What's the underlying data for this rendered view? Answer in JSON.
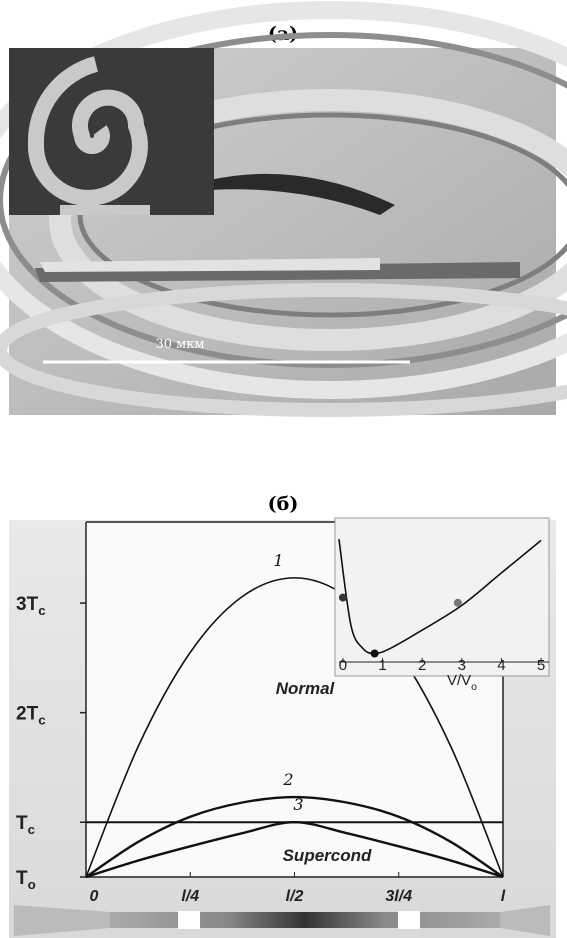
{
  "figure_a": {
    "label": "(a)",
    "scale_bar_label": "30 мкм"
  },
  "figure_b_label": "(б)",
  "chart_data": [
    {
      "type": "line",
      "x": [
        0,
        0.125,
        0.25,
        0.375,
        0.5,
        0.625,
        0.75,
        0.875,
        1
      ],
      "series": [
        {
          "name": "1",
          "color": "#111111",
          "values": [
            0.5,
            1.69,
            2.55,
            3.06,
            3.23,
            3.06,
            2.55,
            1.69,
            0.5
          ]
        },
        {
          "name": "2",
          "color": "#111111",
          "values": [
            0.5,
            0.82,
            1.05,
            1.18,
            1.23,
            1.18,
            1.05,
            0.82,
            0.5
          ]
        },
        {
          "name": "3",
          "color": "#111111",
          "values": [
            0.5,
            0.65,
            0.78,
            0.9,
            1.0,
            0.9,
            0.78,
            0.65,
            0.5
          ]
        }
      ],
      "xlim": [
        0,
        1
      ],
      "xticks": [
        0,
        {
          "value": 0.25,
          "label": "l/4"
        },
        {
          "value": 0.5,
          "label": "l/2"
        },
        {
          "value": 0.75,
          "label": "3l/4"
        },
        {
          "value": 1,
          "label": "l"
        }
      ],
      "ylim": [
        0.5,
        3.74
      ],
      "yticks": [
        {
          "value": 0.5,
          "label": "T",
          "sub": "o"
        },
        {
          "value": 1,
          "label": "T",
          "sub": "c"
        },
        {
          "value": 2,
          "label": "2T",
          "sub": "c"
        },
        {
          "value": 3,
          "label": "3T",
          "sub": "c"
        }
      ],
      "hlines": [
        1
      ],
      "annotations": [
        "Normal",
        "Supercond"
      ]
    },
    {
      "type": "line",
      "x": [
        -0.1,
        0.2,
        0.5,
        0.8,
        1.2,
        2,
        3,
        4,
        5
      ],
      "series": [
        {
          "color": "#111111",
          "values": [
            0.93,
            0.27,
            0.09,
            0.05,
            0.09,
            0.23,
            0.42,
            0.67,
            0.92
          ]
        }
      ],
      "points": {
        "x": [
          0,
          0.8,
          2.9
        ],
        "values": [
          0.48,
          0.05,
          0.44
        ],
        "colors": [
          "#333333",
          "#111111",
          "#777777"
        ]
      },
      "xlim": [
        -0.2,
        5.2
      ],
      "xticks": [
        0,
        1,
        2,
        3,
        4,
        5
      ],
      "ylim": [
        0,
        1
      ],
      "xlabel": {
        "main": "V/V",
        "sub": "o"
      }
    }
  ]
}
